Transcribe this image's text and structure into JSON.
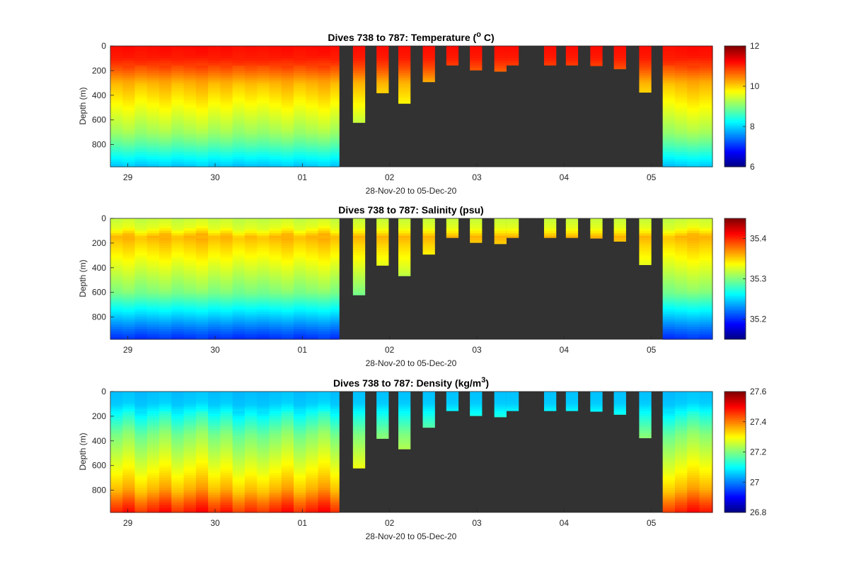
{
  "figure_xlabel": "28-Nov-20 to 05-Dec-20",
  "depth_label": "Depth (m)",
  "time_ticks": [
    "29",
    "30",
    "01",
    "02",
    "03",
    "04",
    "05"
  ],
  "time_tick_values": [
    29,
    30,
    31,
    32,
    33,
    34,
    35
  ],
  "xlim": [
    28.8,
    35.7
  ],
  "ylim": [
    0,
    980
  ],
  "depth_ticks": [
    0,
    200,
    400,
    600,
    800
  ],
  "depth_tick_labels": [
    "0",
    "200",
    "400",
    "600",
    "800"
  ],
  "no_data_color": "#323232",
  "full_dives_before_gap_end": 31.42,
  "full_dives_after_gap_start": 35.13,
  "shallow_dives": [
    {
      "t0": 31.58,
      "t1": 31.72,
      "max_depth": 620
    },
    {
      "t0": 31.85,
      "t1": 31.99,
      "max_depth": 380
    },
    {
      "t0": 32.1,
      "t1": 32.24,
      "max_depth": 465
    },
    {
      "t0": 32.38,
      "t1": 32.52,
      "max_depth": 290
    },
    {
      "t0": 32.65,
      "t1": 32.79,
      "max_depth": 155
    },
    {
      "t0": 32.92,
      "t1": 33.06,
      "max_depth": 195
    },
    {
      "t0": 33.2,
      "t1": 33.34,
      "max_depth": 205
    },
    {
      "t0": 33.34,
      "t1": 33.48,
      "max_depth": 155
    },
    {
      "t0": 33.77,
      "t1": 33.91,
      "max_depth": 155
    },
    {
      "t0": 34.02,
      "t1": 34.16,
      "max_depth": 155
    },
    {
      "t0": 34.3,
      "t1": 34.44,
      "max_depth": 160
    },
    {
      "t0": 34.57,
      "t1": 34.71,
      "max_depth": 185
    },
    {
      "t0": 34.86,
      "t1": 35.0,
      "max_depth": 375
    }
  ],
  "chart_data": [
    {
      "type": "heatmap",
      "title_prefix": "Dives 738 to 787: Temperature (",
      "title_sup": "o",
      "title_suffix": " C)",
      "xlabel": "28-Nov-20 to 05-Dec-20",
      "ylabel": "Depth (m)",
      "colorbar": {
        "min": 6,
        "max": 12,
        "ticks": [
          6,
          8,
          10,
          12
        ],
        "tick_labels": [
          "6",
          "8",
          "10",
          "12"
        ]
      },
      "profile": {
        "depth": [
          0,
          100,
          180,
          300,
          500,
          700,
          800,
          900,
          980
        ],
        "value": [
          11.2,
          11.1,
          10.8,
          10.2,
          9.7,
          9.2,
          8.8,
          8.3,
          7.9
        ]
      }
    },
    {
      "type": "heatmap",
      "title_prefix": "Dives 738 to 787: Salinity (psu)",
      "title_sup": "",
      "title_suffix": "",
      "xlabel": "28-Nov-20 to 05-Dec-20",
      "ylabel": "Depth (m)",
      "colorbar": {
        "min": 35.15,
        "max": 35.45,
        "ticks": [
          35.2,
          35.3,
          35.4
        ],
        "tick_labels": [
          "35.2",
          "35.3",
          "35.4"
        ]
      },
      "profile": {
        "depth": [
          0,
          80,
          150,
          220,
          300,
          450,
          600,
          750,
          900,
          980
        ],
        "value": [
          35.32,
          35.33,
          35.36,
          35.35,
          35.34,
          35.32,
          35.3,
          35.26,
          35.22,
          35.2
        ]
      }
    },
    {
      "type": "heatmap",
      "title_prefix": "Dives 738 to 787: Density (kg/m",
      "title_sup": "3",
      "title_suffix": ")",
      "xlabel": "28-Nov-20 to 05-Dec-20",
      "ylabel": "Depth (m)",
      "colorbar": {
        "min": 26.8,
        "max": 27.6,
        "ticks": [
          26.8,
          27,
          27.2,
          27.4,
          27.6
        ],
        "tick_labels": [
          "26.8",
          "27",
          "27.2",
          "27.4",
          "27.6"
        ]
      },
      "profile": {
        "depth": [
          0,
          100,
          200,
          350,
          500,
          650,
          800,
          900,
          980
        ],
        "value": [
          27.05,
          27.06,
          27.12,
          27.2,
          27.25,
          27.3,
          27.36,
          27.43,
          27.48
        ]
      }
    }
  ]
}
